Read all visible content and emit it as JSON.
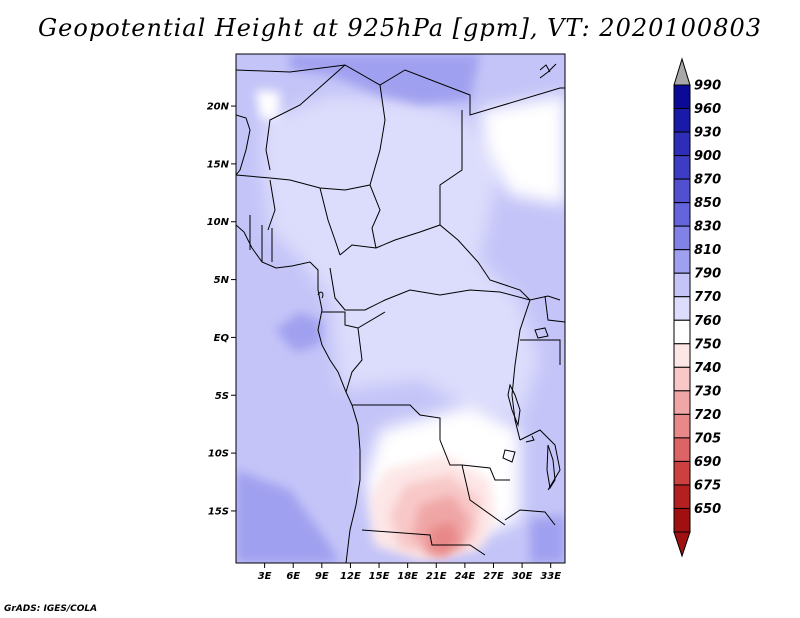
{
  "title": "Geopotential Height at 925hPa [gpm], VT: 2020100803",
  "footer": "GrADS: IGES/COLA",
  "map": {
    "lon_range": [
      0,
      34.5
    ],
    "lat_range": [
      -19.5,
      24.5
    ],
    "lat_ticks": [
      {
        "value": 20,
        "label": "20N"
      },
      {
        "value": 15,
        "label": "15N"
      },
      {
        "value": 10,
        "label": "10N"
      },
      {
        "value": 5,
        "label": "5N"
      },
      {
        "value": 0,
        "label": "EQ"
      },
      {
        "value": -5,
        "label": "5S"
      },
      {
        "value": -10,
        "label": "10S"
      },
      {
        "value": -15,
        "label": "15S"
      }
    ],
    "lon_ticks": [
      {
        "value": 3,
        "label": "3E"
      },
      {
        "value": 6,
        "label": "6E"
      },
      {
        "value": 9,
        "label": "9E"
      },
      {
        "value": 12,
        "label": "12E"
      },
      {
        "value": 15,
        "label": "15E"
      },
      {
        "value": 18,
        "label": "18E"
      },
      {
        "value": 21,
        "label": "21E"
      },
      {
        "value": 24,
        "label": "24E"
      },
      {
        "value": 27,
        "label": "27E"
      },
      {
        "value": 30,
        "label": "30E"
      },
      {
        "value": 33,
        "label": "33E"
      }
    ]
  },
  "colorbar": {
    "levels": [
      "990",
      "960",
      "930",
      "900",
      "870",
      "850",
      "830",
      "810",
      "790",
      "770",
      "760",
      "750",
      "740",
      "730",
      "720",
      "705",
      "690",
      "675",
      "650"
    ],
    "colors": [
      "#0a0a96",
      "#1a1aa8",
      "#2d2db8",
      "#3c3cc4",
      "#5050d0",
      "#6464dc",
      "#8282e6",
      "#a0a0f0",
      "#c4c4f8",
      "#dcdcfc",
      "#ffffff",
      "#fde6e6",
      "#f8c8c8",
      "#f0a6a6",
      "#e88888",
      "#dc6464",
      "#cc4040",
      "#b42020",
      "#a01010",
      "#8c0000"
    ],
    "over_color": "#a8a8a8",
    "under_color": "#a01010"
  }
}
